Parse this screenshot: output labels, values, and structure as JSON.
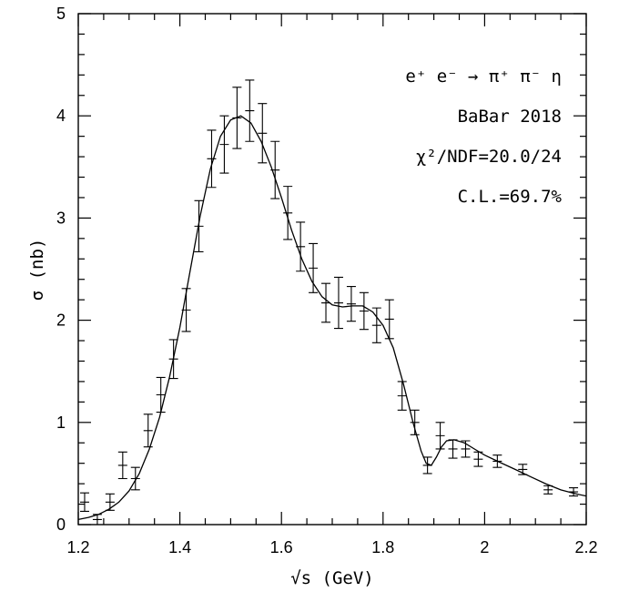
{
  "chart_data": {
    "type": "scatter",
    "xlabel": "√s (GeV)",
    "ylabel": "σ (nb)",
    "xlim": [
      1.2,
      2.2
    ],
    "ylim": [
      0,
      5
    ],
    "xticks": [
      "1.2",
      "1.4",
      "1.6",
      "1.8",
      "2",
      "2.2"
    ],
    "xtick_values": [
      1.2,
      1.4,
      1.6,
      1.8,
      2.0,
      2.2
    ],
    "yticks": [
      "0",
      "1",
      "2",
      "3",
      "4",
      "5"
    ],
    "ytick_values": [
      0,
      1,
      2,
      3,
      4,
      5
    ],
    "annotations": [
      "e⁺ e⁻ → π⁺ π⁻ η",
      "BaBar 2018",
      "χ²/NDF=20.0/24",
      "C.L.=69.7%"
    ],
    "points": [
      {
        "x": 1.2125,
        "y": 0.22,
        "err": 0.09
      },
      {
        "x": 1.2375,
        "y": 0.05,
        "err": 0.05
      },
      {
        "x": 1.2625,
        "y": 0.22,
        "err": 0.08
      },
      {
        "x": 1.2875,
        "y": 0.58,
        "err": 0.13
      },
      {
        "x": 1.3125,
        "y": 0.45,
        "err": 0.11
      },
      {
        "x": 1.3375,
        "y": 0.92,
        "err": 0.16
      },
      {
        "x": 1.3625,
        "y": 1.27,
        "err": 0.17
      },
      {
        "x": 1.3875,
        "y": 1.62,
        "err": 0.19
      },
      {
        "x": 1.4125,
        "y": 2.1,
        "err": 0.21
      },
      {
        "x": 1.4375,
        "y": 2.92,
        "err": 0.25
      },
      {
        "x": 1.4625,
        "y": 3.58,
        "err": 0.28
      },
      {
        "x": 1.4875,
        "y": 3.72,
        "err": 0.28
      },
      {
        "x": 1.5125,
        "y": 3.98,
        "err": 0.3
      },
      {
        "x": 1.5375,
        "y": 4.05,
        "err": 0.3
      },
      {
        "x": 1.5625,
        "y": 3.83,
        "err": 0.29
      },
      {
        "x": 1.5875,
        "y": 3.47,
        "err": 0.28
      },
      {
        "x": 1.6125,
        "y": 3.05,
        "err": 0.26
      },
      {
        "x": 1.6375,
        "y": 2.72,
        "err": 0.24
      },
      {
        "x": 1.6625,
        "y": 2.51,
        "err": 0.24
      },
      {
        "x": 1.6875,
        "y": 2.17,
        "err": 0.19
      },
      {
        "x": 1.7125,
        "y": 2.17,
        "err": 0.25
      },
      {
        "x": 1.7375,
        "y": 2.16,
        "err": 0.17
      },
      {
        "x": 1.7625,
        "y": 2.09,
        "err": 0.18
      },
      {
        "x": 1.7875,
        "y": 1.95,
        "err": 0.17
      },
      {
        "x": 1.8125,
        "y": 2.01,
        "err": 0.19
      },
      {
        "x": 1.8375,
        "y": 1.26,
        "err": 0.14
      },
      {
        "x": 1.8625,
        "y": 1.0,
        "err": 0.12
      },
      {
        "x": 1.8875,
        "y": 0.58,
        "err": 0.08
      },
      {
        "x": 1.9125,
        "y": 0.87,
        "err": 0.13
      },
      {
        "x": 1.9375,
        "y": 0.74,
        "err": 0.09
      },
      {
        "x": 1.9625,
        "y": 0.74,
        "err": 0.08
      },
      {
        "x": 1.9875,
        "y": 0.64,
        "err": 0.07
      },
      {
        "x": 2.025,
        "y": 0.62,
        "err": 0.06
      },
      {
        "x": 2.075,
        "y": 0.54,
        "err": 0.05
      },
      {
        "x": 2.125,
        "y": 0.34,
        "err": 0.04
      },
      {
        "x": 2.175,
        "y": 0.32,
        "err": 0.04
      }
    ],
    "fit_curve": [
      [
        1.2,
        0.05
      ],
      [
        1.22,
        0.07
      ],
      [
        1.24,
        0.1
      ],
      [
        1.26,
        0.15
      ],
      [
        1.28,
        0.22
      ],
      [
        1.3,
        0.33
      ],
      [
        1.32,
        0.5
      ],
      [
        1.34,
        0.74
      ],
      [
        1.36,
        1.05
      ],
      [
        1.38,
        1.45
      ],
      [
        1.4,
        1.93
      ],
      [
        1.42,
        2.48
      ],
      [
        1.44,
        3.02
      ],
      [
        1.46,
        3.48
      ],
      [
        1.48,
        3.8
      ],
      [
        1.5,
        3.96
      ],
      [
        1.52,
        4.0
      ],
      [
        1.54,
        3.93
      ],
      [
        1.56,
        3.75
      ],
      [
        1.58,
        3.5
      ],
      [
        1.6,
        3.2
      ],
      [
        1.62,
        2.88
      ],
      [
        1.64,
        2.6
      ],
      [
        1.66,
        2.38
      ],
      [
        1.68,
        2.23
      ],
      [
        1.7,
        2.15
      ],
      [
        1.72,
        2.13
      ],
      [
        1.74,
        2.14
      ],
      [
        1.76,
        2.14
      ],
      [
        1.78,
        2.08
      ],
      [
        1.8,
        1.95
      ],
      [
        1.82,
        1.73
      ],
      [
        1.84,
        1.38
      ],
      [
        1.86,
        0.98
      ],
      [
        1.875,
        0.72
      ],
      [
        1.885,
        0.6
      ],
      [
        1.895,
        0.58
      ],
      [
        1.905,
        0.66
      ],
      [
        1.915,
        0.76
      ],
      [
        1.925,
        0.82
      ],
      [
        1.94,
        0.83
      ],
      [
        1.96,
        0.8
      ],
      [
        1.98,
        0.74
      ],
      [
        2.0,
        0.68
      ],
      [
        2.03,
        0.61
      ],
      [
        2.06,
        0.54
      ],
      [
        2.09,
        0.47
      ],
      [
        2.12,
        0.4
      ],
      [
        2.15,
        0.34
      ],
      [
        2.18,
        0.3
      ],
      [
        2.2,
        0.28
      ]
    ]
  }
}
